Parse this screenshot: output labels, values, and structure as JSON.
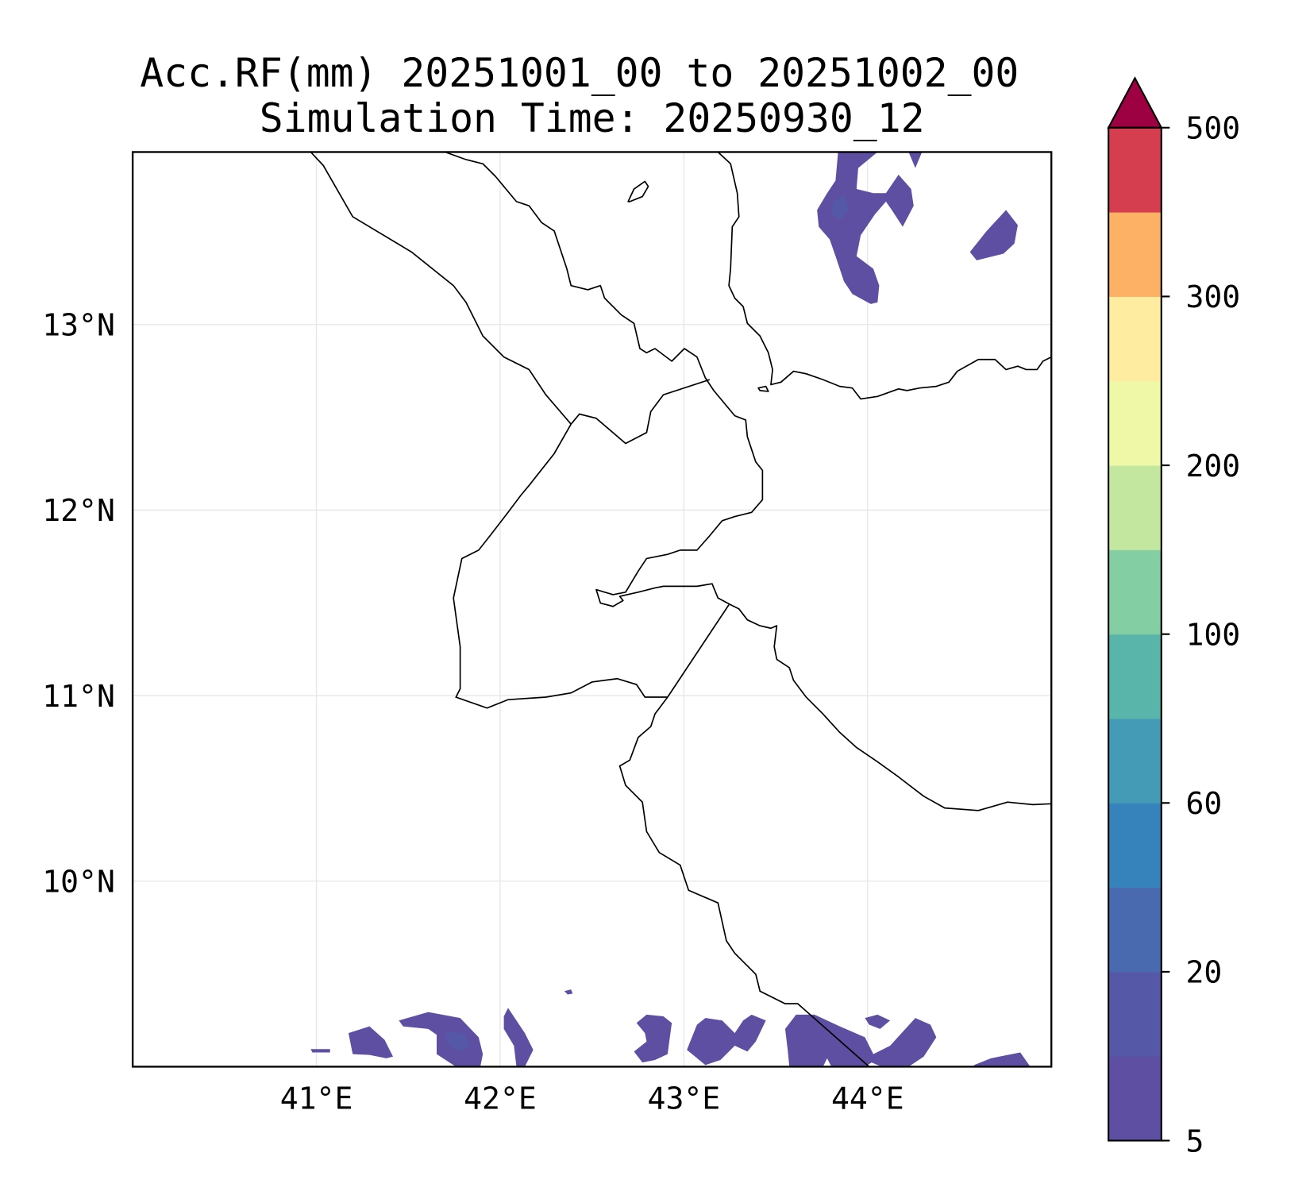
{
  "title": {
    "line1": "Acc.RF(mm) 20251001_00 to 20251002_00",
    "line2": "Simulation Time: 20250930_12"
  },
  "map": {
    "lon_range": [
      40.0,
      45.0
    ],
    "lat_range": [
      9.0,
      13.93
    ],
    "lon_ticks": [
      {
        "value": 41,
        "label": "41°E"
      },
      {
        "value": 42,
        "label": "42°E"
      },
      {
        "value": 43,
        "label": "43°E"
      },
      {
        "value": 44,
        "label": "44°E"
      }
    ],
    "lat_ticks": [
      {
        "value": 13,
        "label": "13°N"
      },
      {
        "value": 12,
        "label": "12°N"
      },
      {
        "value": 11,
        "label": "11°N"
      },
      {
        "value": 10,
        "label": "10°N"
      }
    ],
    "rain_color": "#5e4fa2"
  },
  "colorbar": {
    "boundaries": [
      5,
      10,
      20,
      40,
      60,
      80,
      100,
      150,
      200,
      250,
      300,
      400,
      500
    ],
    "colors": [
      "#5e4fa2",
      "#5558a6",
      "#4a6aaf",
      "#3682ba",
      "#439bb5",
      "#59b4aa",
      "#84cea4",
      "#c3e79f",
      "#eff8a6",
      "#feeda1",
      "#fdb164",
      "#d53e4f"
    ],
    "extend_color": "#9e0142",
    "tick_labels": [
      {
        "index": 0,
        "label": "5"
      },
      {
        "index": 2,
        "label": "20"
      },
      {
        "index": 4,
        "label": "60"
      },
      {
        "index": 6,
        "label": "100"
      },
      {
        "index": 8,
        "label": "200"
      },
      {
        "index": 10,
        "label": "300"
      },
      {
        "index": 12,
        "label": "500"
      }
    ]
  }
}
